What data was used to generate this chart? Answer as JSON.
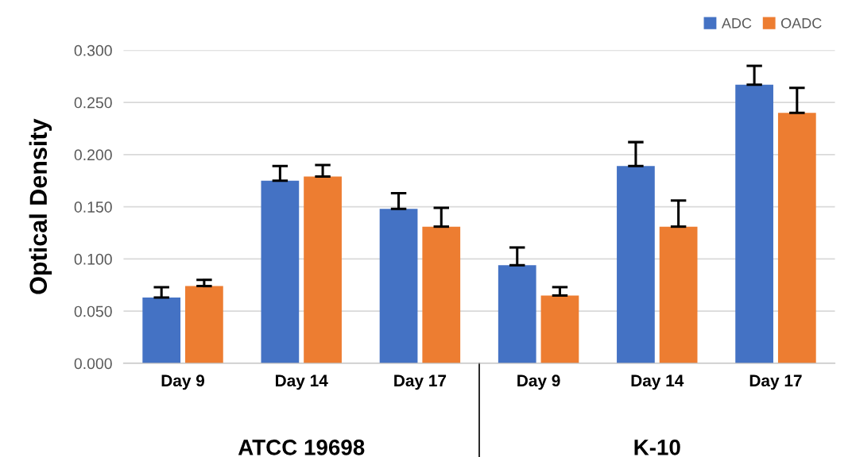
{
  "chart_data": {
    "type": "bar",
    "ylabel": "Optical Density",
    "categories": [
      "Day 9",
      "Day 14",
      "Day 17",
      "Day 9",
      "Day 14",
      "Day 17"
    ],
    "series": [
      {
        "name": "ADC",
        "color": "#4472c4",
        "values": [
          0.063,
          0.175,
          0.148,
          0.094,
          0.189,
          0.267
        ],
        "errors": [
          [
            0.063,
            0.073
          ],
          [
            0.175,
            0.189
          ],
          [
            0.148,
            0.163
          ],
          [
            0.094,
            0.111
          ],
          [
            0.189,
            0.212
          ],
          [
            0.267,
            0.285
          ]
        ]
      },
      {
        "name": "OADC",
        "color": "#ed7d31",
        "values": [
          0.074,
          0.179,
          0.131,
          0.065,
          0.131,
          0.24
        ],
        "errors": [
          [
            0.074,
            0.08
          ],
          [
            0.179,
            0.19
          ],
          [
            0.131,
            0.149
          ],
          [
            0.065,
            0.073
          ],
          [
            0.131,
            0.156
          ],
          [
            0.24,
            0.264
          ]
        ]
      }
    ],
    "ylim": [
      0,
      0.3
    ],
    "yticks": [
      {
        "value": 0,
        "label": "0.000"
      },
      {
        "value": 0.05,
        "label": "0.050"
      },
      {
        "value": 0.1,
        "label": "0.100"
      },
      {
        "value": 0.15,
        "label": "0.150"
      },
      {
        "value": 0.2,
        "label": "0.200"
      },
      {
        "value": 0.25,
        "label": "0.250"
      },
      {
        "value": 0.3,
        "label": "0.300"
      }
    ],
    "grid": "y",
    "legend": "top right",
    "annotations": [
      "ATCC 19698",
      "K-10"
    ]
  }
}
